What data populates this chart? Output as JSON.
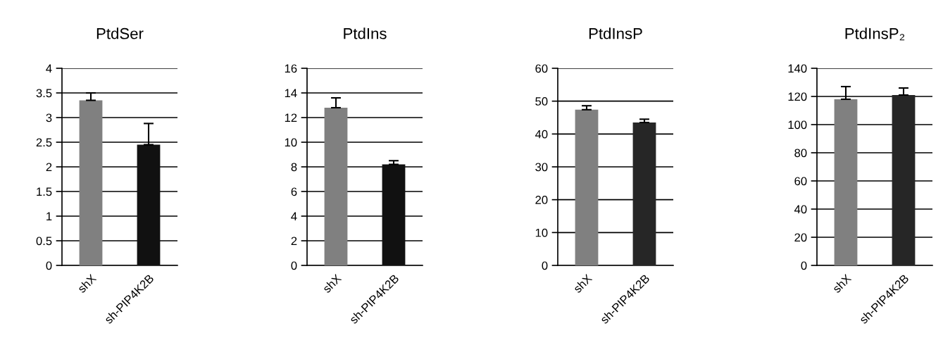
{
  "chart_data": [
    {
      "type": "bar",
      "title": "PtdSer",
      "categories": [
        "shX",
        "sh-PIP4K2B"
      ],
      "values": [
        3.35,
        2.45
      ],
      "colors": [
        "#808080",
        "#111111"
      ],
      "errors": [
        [
          3.35,
          3.5
        ],
        [
          2.45,
          2.88
        ]
      ],
      "ylim": [
        0,
        4
      ],
      "yticks": [
        0,
        0.5,
        1,
        1.5,
        2,
        2.5,
        3,
        3.5,
        4
      ],
      "grid": "y"
    },
    {
      "type": "bar",
      "title": "PtdIns",
      "categories": [
        "shX",
        "sh-PIP4K2B"
      ],
      "values": [
        12.8,
        8.2
      ],
      "colors": [
        "#808080",
        "#111111"
      ],
      "errors": [
        [
          12.8,
          13.6
        ],
        [
          8.2,
          8.5
        ]
      ],
      "ylim": [
        0,
        16
      ],
      "yticks": [
        0,
        2,
        4,
        6,
        8,
        10,
        12,
        14,
        16
      ],
      "grid": "y"
    },
    {
      "type": "bar",
      "title": "PtdInsP",
      "categories": [
        "shX",
        "sh-PIP4K2B"
      ],
      "values": [
        47.4,
        43.5
      ],
      "colors": [
        "#808080",
        "#262626"
      ],
      "errors": [
        [
          47.4,
          48.6
        ],
        [
          43.5,
          44.5
        ]
      ],
      "ylim": [
        0,
        60
      ],
      "yticks": [
        0,
        10,
        20,
        30,
        40,
        50,
        60
      ],
      "grid": "y"
    },
    {
      "type": "bar",
      "title": "PtdInsP₂",
      "categories": [
        "shX",
        "sh-PIP4K2B"
      ],
      "values": [
        118,
        121
      ],
      "colors": [
        "#808080",
        "#262626"
      ],
      "errors": [
        [
          118,
          127
        ],
        [
          121,
          126
        ]
      ],
      "ylim": [
        0,
        140
      ],
      "yticks": [
        0,
        20,
        40,
        60,
        80,
        100,
        120,
        140
      ],
      "grid": "y"
    }
  ]
}
